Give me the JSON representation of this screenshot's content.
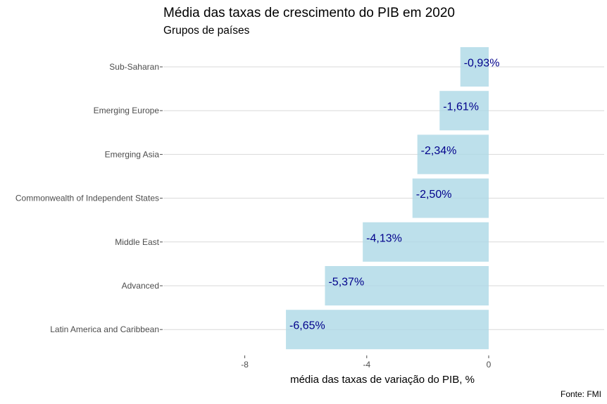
{
  "chart_data": {
    "type": "bar",
    "orientation": "horizontal",
    "title": "Média das taxas de crescimento do PIB em 2020",
    "subtitle": "Grupos de países",
    "xlabel": "média das taxas de variação do PIB, %",
    "ylabel": "",
    "caption": "Fonte: FMI",
    "categories": [
      "Sub-Saharan",
      "Emerging Europe",
      "Emerging Asia",
      "Commonwealth of Independent States",
      "Middle East",
      "Advanced",
      "Latin America and Caribbean"
    ],
    "values": [
      -0.93,
      -1.61,
      -2.34,
      -2.5,
      -4.13,
      -5.37,
      -6.65
    ],
    "data_labels": [
      "-0,93%",
      "-1,61%",
      "-2,34%",
      "-2,50%",
      "-4,13%",
      "-5,37%",
      "-6,65%"
    ],
    "xticks": [
      -8,
      -4,
      0
    ],
    "xtick_labels": [
      "-8",
      "-4",
      "0"
    ],
    "xlim": [
      -10.8,
      3.6
    ],
    "grid": "horizontal major only",
    "legend": "none",
    "colors": {
      "bar": "#add8e6",
      "data_label": "#00008b",
      "grid": "#d9d9d9"
    }
  }
}
